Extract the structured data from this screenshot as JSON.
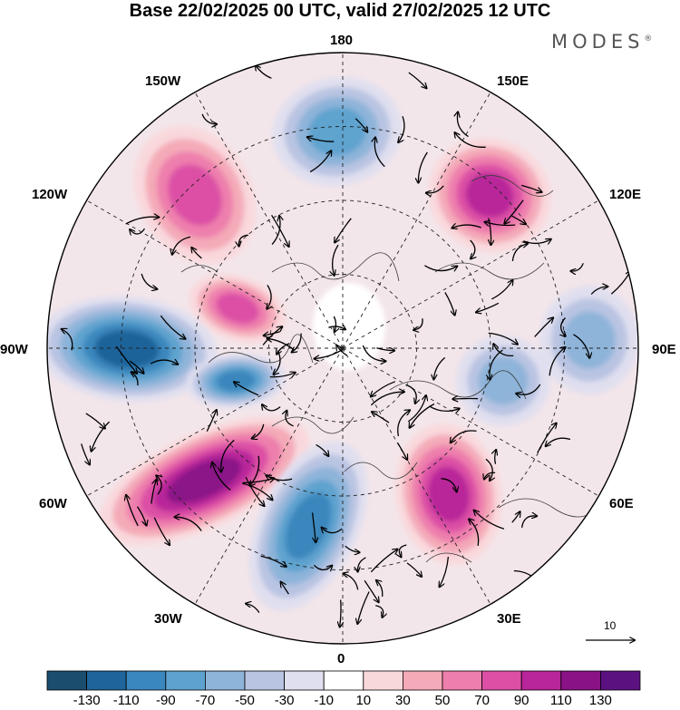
{
  "title": "Base 22/02/2025 00 UTC, valid 27/02/2025 12 UTC",
  "logo_text": "MODES",
  "logo_mark": "®",
  "longitude_labels": {
    "top": "180",
    "bottom": "0",
    "left": "90W",
    "right": "90E",
    "upper_left": "150W",
    "upper_right": "150E",
    "mid_upper_left": "120W",
    "mid_upper_right": "120E",
    "mid_lower_left": "60W",
    "mid_lower_right": "60E",
    "lower_left": "30W",
    "lower_right": "30E"
  },
  "reference_vector_label": "10",
  "colorbar": {
    "labels": [
      "-130",
      "-110",
      "-90",
      "-70",
      "-50",
      "-30",
      "-10",
      "10",
      "30",
      "50",
      "70",
      "90",
      "110",
      "130"
    ],
    "colors": [
      "#1b4d6e",
      "#1f649a",
      "#3a87bd",
      "#5ea3cf",
      "#8eb4d9",
      "#b9c4e2",
      "#e0dfef",
      "#ffffff",
      "#f9d8dc",
      "#f4aab8",
      "#ee7fad",
      "#dc4fa5",
      "#b9259a",
      "#8a1287",
      "#5c1180"
    ]
  },
  "anomaly_centers": [
    {
      "region": "north-pacific",
      "value": -90
    },
    {
      "region": "far-east-russia",
      "value": 110
    },
    {
      "region": "alaska-gulf",
      "value": 90
    },
    {
      "region": "northern-canada",
      "value": 90
    },
    {
      "region": "north-america",
      "value": -130
    },
    {
      "region": "hudson-bay",
      "value": -110
    },
    {
      "region": "north-atlantic",
      "value": 130
    },
    {
      "region": "north-europe",
      "value": -110
    },
    {
      "region": "eastern-europe",
      "value": 110
    },
    {
      "region": "central-siberia",
      "value": -70
    },
    {
      "region": "east-siberia",
      "value": -70
    }
  ]
}
